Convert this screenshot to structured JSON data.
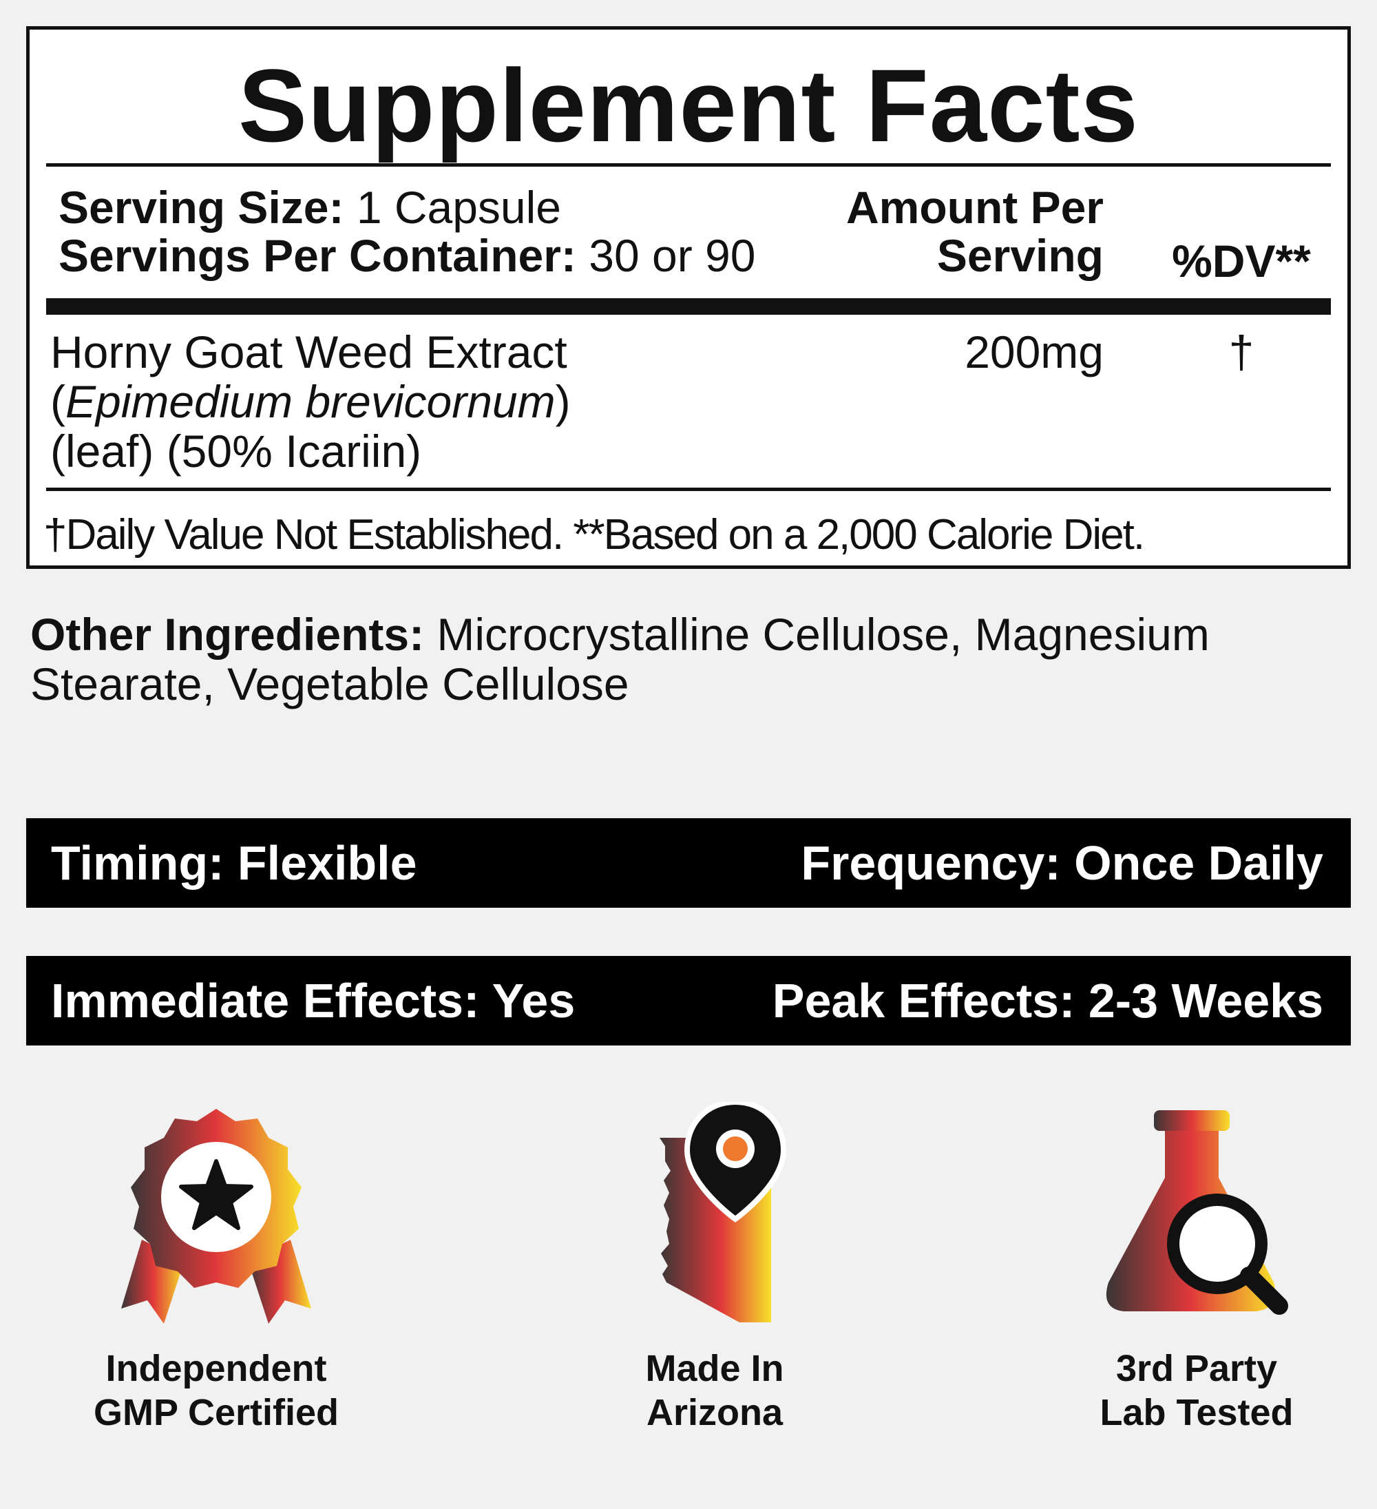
{
  "facts": {
    "title": "Supplement Facts",
    "serving_size_label": "Serving Size:",
    "serving_size_value": "1 Capsule",
    "servings_per_container_label": "Servings Per Container:",
    "servings_per_container_value": "30 or 90",
    "amount_header_line1": "Amount Per",
    "amount_header_line2": "Serving",
    "dv_header": "%DV**",
    "ingredient": {
      "name": "Horny Goat Weed Extract",
      "latin_open": "(",
      "latin": "Epimedium brevicornum",
      "latin_close": ")",
      "detail": "(leaf) (50% Icariin)",
      "amount": "200mg",
      "dv": "†"
    },
    "footnote": "†Daily Value Not Established. **Based on a 2,000 Calorie Diet."
  },
  "other_ingredients": {
    "label": "Other Ingredients:",
    "value": "Microcrystalline Cellulose, Magnesium Stearate, Vegetable Cellulose"
  },
  "bars": [
    {
      "left": "Timing: Flexible",
      "right": "Frequency: Once Daily"
    },
    {
      "left": "Immediate Effects: Yes",
      "right": "Peak Effects: 2-3 Weeks"
    }
  ],
  "badges": [
    {
      "icon": "award-ribbon-star-icon",
      "line1": "Independent",
      "line2": "GMP Certified"
    },
    {
      "icon": "arizona-map-pin-icon",
      "line1": "Made In",
      "line2": "Arizona"
    },
    {
      "icon": "lab-flask-magnifier-icon",
      "line1": "3rd Party",
      "line2": "Lab Tested"
    }
  ],
  "colors": {
    "gradient_start": "#3a3636",
    "gradient_mid": "#e0383a",
    "gradient_end": "#f7e02a",
    "background": "#f1f1f1",
    "text": "#111111"
  }
}
